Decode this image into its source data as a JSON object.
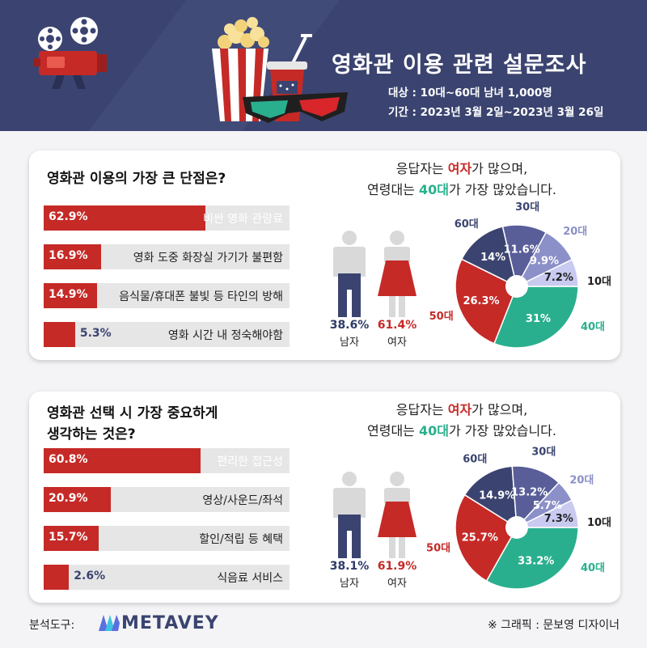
{
  "header": {
    "title": "영화관 이용 관련 설문조사",
    "target": "대상 : 10대~60대 남녀 1,000명",
    "period": "기간 : 2023년 3월 2일~2023년 3월 26일"
  },
  "colors": {
    "navy": "#3b4470",
    "red": "#c52a27",
    "teal": "#2aaf8e",
    "purple": "#8b90c8",
    "lavender": "#c8caf0"
  },
  "note": {
    "l1_pre": "응답자는 ",
    "l1_hl": "여자",
    "l1_post": "가 많으며,",
    "l2_pre": "연령대는 ",
    "l2_hl": "40대",
    "l2_post": "가 가장 많았습니다."
  },
  "gender_labels": {
    "male": "남자",
    "female": "여자"
  },
  "age_labels": [
    "10대",
    "20대",
    "30대",
    "40대",
    "50대",
    "60대"
  ],
  "footer": {
    "tool_label": "분석도구:",
    "logo": "METAVEY",
    "credit": "※ 그래픽 : 문보영 디자이너"
  },
  "chart_data": [
    {
      "type": "bar",
      "title": "영화관 이용의 가장 큰 단점은?",
      "categories": [
        "비싼 영화 관람료",
        "영화 도중 화장실 가기가 불편함",
        "음식물/휴대폰 불빛 등 타인의 방해",
        "영화 시간 내 정숙해야함"
      ],
      "values": [
        62.9,
        16.9,
        14.9,
        5.3
      ],
      "labels": [
        "62.9%",
        "16.9%",
        "14.9%",
        "5.3%"
      ]
    },
    {
      "type": "pie",
      "categories": [
        "남자",
        "여자"
      ],
      "values": [
        38.6,
        61.4
      ],
      "labels": [
        "38.6%",
        "61.4%"
      ]
    },
    {
      "type": "pie",
      "categories": [
        "10대",
        "20대",
        "30대",
        "40대",
        "50대",
        "60대"
      ],
      "values": [
        7.2,
        9.9,
        11.6,
        31,
        26.3,
        14
      ],
      "labels": [
        "7.2%",
        "9.9%",
        "11.6%",
        "31%",
        "26.3%",
        "14%"
      ]
    },
    {
      "type": "bar",
      "title": "영화관 선택 시 가장 중요하게 생각하는 것은?",
      "title_lines": [
        "영화관 선택 시 가장 중요하게",
        "생각하는 것은?"
      ],
      "categories": [
        "편리한 접근성",
        "영상/사운드/좌석",
        "할인/적립 등 혜택",
        "식음료 서비스"
      ],
      "values": [
        60.8,
        20.9,
        15.7,
        2.6
      ],
      "labels": [
        "60.8%",
        "20.9%",
        "15.7%",
        "2.6%"
      ]
    },
    {
      "type": "pie",
      "categories": [
        "남자",
        "여자"
      ],
      "values": [
        38.1,
        61.9
      ],
      "labels": [
        "38.1%",
        "61.9%"
      ]
    },
    {
      "type": "pie",
      "categories": [
        "10대",
        "20대",
        "30대",
        "40대",
        "50대",
        "60대"
      ],
      "values": [
        7.3,
        5.7,
        13.2,
        33.2,
        25.7,
        14.9
      ],
      "labels": [
        "7.3%",
        "5.7%",
        "13.2%",
        "33.2%",
        "25.7%",
        "14.9%"
      ]
    }
  ]
}
